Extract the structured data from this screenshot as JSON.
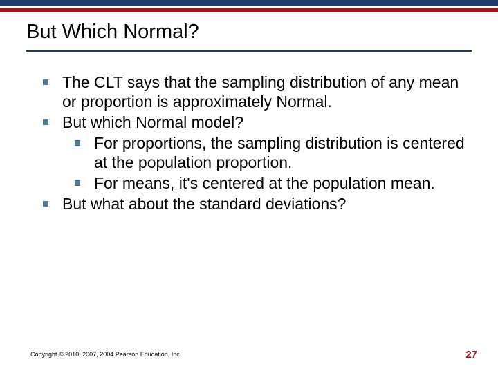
{
  "colors": {
    "navy": "#1f3a6e",
    "red": "#9a1b1e",
    "bullet": "#527993",
    "text": "#000000",
    "background": "#ffffff"
  },
  "title": "But Which Normal?",
  "bullets": [
    {
      "text": "The CLT says that the sampling distribution of any mean or proportion is approximately Normal."
    },
    {
      "text": "But which Normal model?",
      "sub": [
        "For proportions, the sampling distribution is centered at the population proportion.",
        "For means, it's centered at the population mean."
      ]
    },
    {
      "text": "But what about the standard deviations?"
    }
  ],
  "copyright": "Copyright © 2010, 2007, 2004 Pearson Education, Inc.",
  "page_number": "27"
}
